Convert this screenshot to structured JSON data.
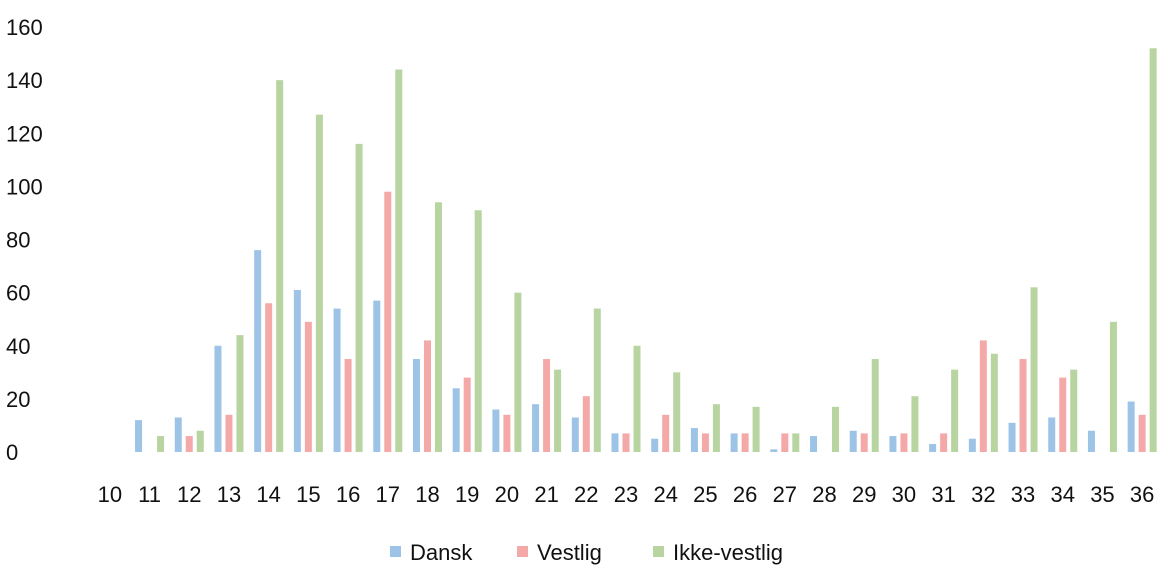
{
  "chart_data": {
    "type": "bar",
    "categories": [
      "10",
      "11",
      "12",
      "13",
      "14",
      "15",
      "16",
      "17",
      "18",
      "19",
      "20",
      "21",
      "22",
      "23",
      "24",
      "25",
      "26",
      "27",
      "28",
      "29",
      "30",
      "31",
      "32",
      "33",
      "34",
      "35",
      "36"
    ],
    "series": [
      {
        "name": "Dansk",
        "color": "#9dc3e6",
        "values": [
          0,
          12,
          13,
          40,
          76,
          61,
          54,
          57,
          35,
          24,
          16,
          18,
          13,
          7,
          5,
          9,
          7,
          1,
          6,
          8,
          6,
          3,
          5,
          11,
          13,
          8,
          19
        ]
      },
      {
        "name": "Vestlig",
        "color": "#f4a9a8",
        "values": [
          0,
          0,
          6,
          14,
          56,
          49,
          35,
          98,
          42,
          28,
          14,
          35,
          21,
          7,
          14,
          7,
          7,
          7,
          0,
          7,
          7,
          7,
          42,
          35,
          28,
          0,
          14
        ]
      },
      {
        "name": "Ikke-vestlig",
        "color": "#b8d4a1",
        "values": [
          0,
          6,
          8,
          44,
          140,
          127,
          116,
          144,
          94,
          91,
          60,
          31,
          54,
          40,
          30,
          18,
          17,
          7,
          17,
          35,
          21,
          31,
          37,
          62,
          31,
          49,
          152
        ]
      }
    ],
    "ylim": [
      0,
      160
    ],
    "yticks": [
      0,
      20,
      40,
      60,
      80,
      100,
      120,
      140,
      160
    ],
    "grid": false,
    "legend_position": "bottom"
  }
}
